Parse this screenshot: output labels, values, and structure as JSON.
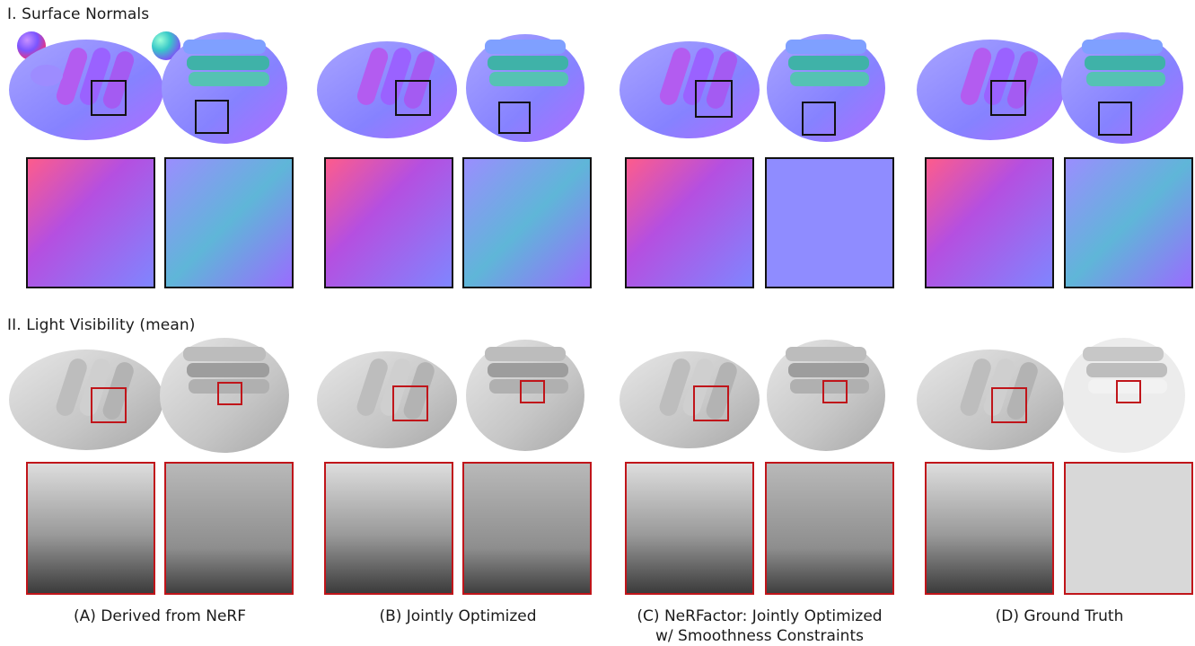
{
  "sections": {
    "normals_title": "I. Surface Normals",
    "visibility_title": "II. Light Visibility (mean)"
  },
  "columns": [
    {
      "label_line1": "(A) Derived from NeRF",
      "label_line2": ""
    },
    {
      "label_line1": "(B) Jointly Optimized",
      "label_line2": ""
    },
    {
      "label_line1": "(C) NeRFactor: Jointly Optimized",
      "label_line2": "w/ Smoothness Constraints"
    },
    {
      "label_line1": "(D) Ground Truth",
      "label_line2": ""
    }
  ],
  "colors": {
    "normal_box": "#111111",
    "visibility_box": "#c0151a",
    "normal_base": "#8a86ff",
    "visibility_base": "#d4d4d4"
  },
  "icons": [
    "normal-color-sphere-icon",
    "normal-color-sphere-icon"
  ]
}
